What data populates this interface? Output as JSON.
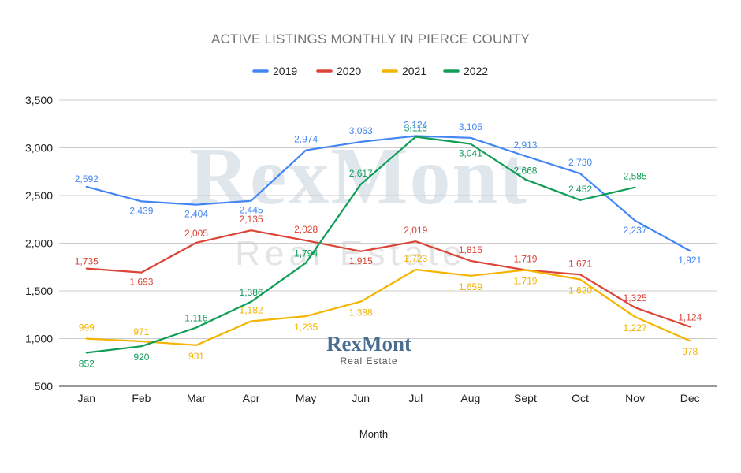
{
  "chart_data": {
    "type": "line",
    "title": "ACTIVE LISTINGS MONTHLY IN PIERCE COUNTY",
    "xlabel": "Month",
    "ylabel": "",
    "categories": [
      "Jan",
      "Feb",
      "Mar",
      "Apr",
      "May",
      "Jun",
      "Jul",
      "Aug",
      "Sept",
      "Oct",
      "Nov",
      "Dec"
    ],
    "ylim": [
      500,
      3500
    ],
    "yticks": [
      500,
      1000,
      1500,
      2000,
      2500,
      3000,
      3500
    ],
    "grid": true,
    "legend_position": "top",
    "series": [
      {
        "name": "2019",
        "color": "#4285f4",
        "values": [
          2592,
          2439,
          2404,
          2445,
          2974,
          3063,
          3124,
          3105,
          2913,
          2730,
          2237,
          1921
        ]
      },
      {
        "name": "2020",
        "color": "#db4437",
        "values": [
          1735,
          1693,
          2005,
          2135,
          2028,
          1915,
          2019,
          1815,
          1719,
          1671,
          1325,
          1124
        ]
      },
      {
        "name": "2021",
        "color": "#f4b400",
        "values": [
          999,
          971,
          931,
          1182,
          1235,
          1388,
          1723,
          1659,
          1719,
          1620,
          1227,
          978
        ]
      },
      {
        "name": "2022",
        "color": "#0f9d58",
        "values": [
          852,
          920,
          1116,
          1386,
          1794,
          2617,
          3116,
          3041,
          2668,
          2452,
          2585,
          null
        ]
      }
    ]
  },
  "watermark": {
    "brand": "RexMont",
    "tagline": "Real Estate"
  },
  "logo": {
    "brand": "RexMont",
    "tagline": "Real Estate"
  }
}
